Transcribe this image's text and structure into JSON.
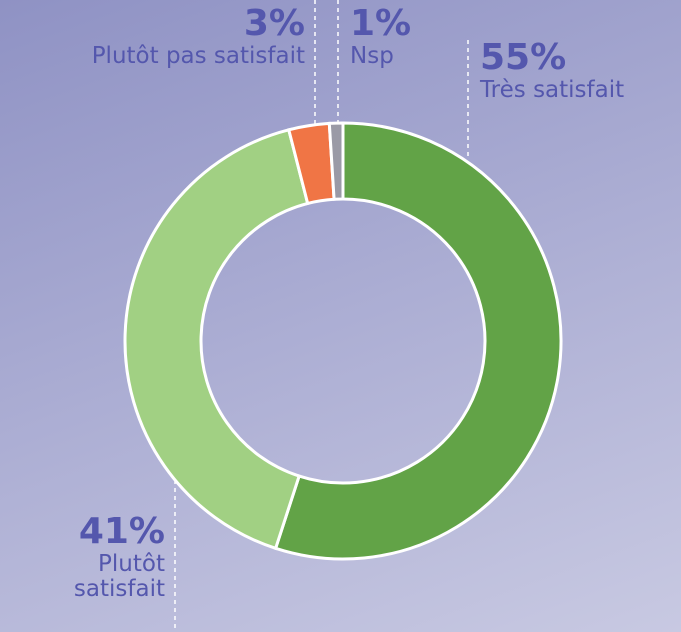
{
  "chart_data": {
    "type": "donut",
    "categories": [
      "Très satisfait",
      "Plutôt satisfait",
      "Plutôt pas satisfait",
      "Nsp"
    ],
    "values": [
      55,
      41,
      3,
      1
    ],
    "value_labels": [
      "55%",
      "41%",
      "3%",
      "1%"
    ],
    "colors": [
      "#62a347",
      "#a1d083",
      "#f07545",
      "#9a9aa6"
    ]
  }
}
